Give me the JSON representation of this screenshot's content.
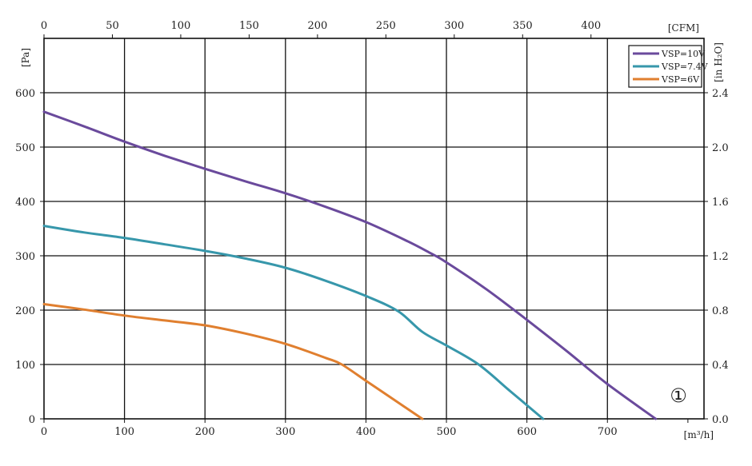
{
  "chart_data": {
    "type": "line",
    "x_unit_bottom": "[m³/h]",
    "x_unit_top": "[CFM]",
    "y_unit_left": "[Pa]",
    "y_unit_right": "[in H₂O]",
    "x_range": [
      0,
      820
    ],
    "y_range": [
      0,
      700
    ],
    "x_ticks_bottom": [
      0,
      100,
      200,
      300,
      400,
      500,
      600,
      700
    ],
    "x_ticks_top": [
      0,
      50,
      100,
      150,
      200,
      250,
      300,
      350,
      400
    ],
    "y_ticks_left": [
      0,
      100,
      200,
      300,
      400,
      500,
      600
    ],
    "y_ticks_right": [
      "0.0",
      "0.4",
      "0.8",
      "1.2",
      "1.6",
      "2.0",
      "2.4"
    ],
    "grid": true,
    "legend_position": "top-right",
    "marker_label": "①",
    "series": [
      {
        "name": "VSP=10V",
        "color": "#6a4a9c",
        "points": [
          [
            0,
            565
          ],
          [
            50,
            538
          ],
          [
            100,
            510
          ],
          [
            150,
            484
          ],
          [
            200,
            460
          ],
          [
            250,
            437
          ],
          [
            300,
            415
          ],
          [
            350,
            390
          ],
          [
            400,
            362
          ],
          [
            450,
            328
          ],
          [
            480,
            305
          ],
          [
            500,
            288
          ],
          [
            550,
            238
          ],
          [
            600,
            182
          ],
          [
            650,
            124
          ],
          [
            700,
            64
          ],
          [
            760,
            0
          ]
        ]
      },
      {
        "name": "VSP=7.4V",
        "color": "#3797ab",
        "points": [
          [
            0,
            355
          ],
          [
            50,
            343
          ],
          [
            100,
            333
          ],
          [
            150,
            321
          ],
          [
            200,
            309
          ],
          [
            250,
            295
          ],
          [
            300,
            278
          ],
          [
            350,
            254
          ],
          [
            400,
            226
          ],
          [
            440,
            198
          ],
          [
            470,
            160
          ],
          [
            500,
            135
          ],
          [
            540,
            100
          ],
          [
            580,
            50
          ],
          [
            620,
            0
          ]
        ]
      },
      {
        "name": "VSP=6V",
        "color": "#e07f2f",
        "points": [
          [
            0,
            211
          ],
          [
            50,
            201
          ],
          [
            100,
            190
          ],
          [
            150,
            181
          ],
          [
            200,
            172
          ],
          [
            250,
            157
          ],
          [
            300,
            138
          ],
          [
            350,
            112
          ],
          [
            370,
            100
          ],
          [
            400,
            70
          ],
          [
            430,
            40
          ],
          [
            470,
            0
          ]
        ]
      }
    ]
  }
}
